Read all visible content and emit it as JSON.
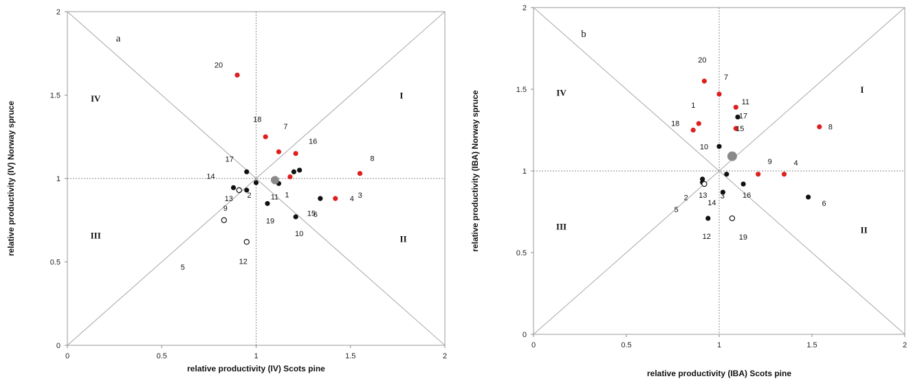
{
  "chart_data": [
    {
      "type": "scatter",
      "panel_label": "a",
      "xlabel": "relative productivity (IV) Scots pine",
      "ylabel": "relative productivity (IV) Norway spruce",
      "xlim": [
        0,
        2
      ],
      "ylim": [
        0,
        2
      ],
      "xticks": [
        "0",
        "0.5",
        "1",
        "1.5",
        "2"
      ],
      "yticks": [
        "0",
        "0.5",
        "1",
        "1.5",
        "2"
      ],
      "quadrants": {
        "I": "I",
        "II": "II",
        "III": "III",
        "IV": "IV"
      },
      "colors": {
        "red": "#dd1f1f",
        "black": "#111111",
        "open": "#ffffff",
        "mean": "#8a8a8a"
      },
      "mean_point": {
        "x": 1.1,
        "y": 0.99
      },
      "points": [
        {
          "label": "1",
          "x": 1.12,
          "y": 0.97,
          "style": "black"
        },
        {
          "label": "2",
          "x": 1.0,
          "y": 0.975,
          "style": "black"
        },
        {
          "label": "3",
          "x": 1.23,
          "y": 1.05,
          "style": "black"
        },
        {
          "label": "4",
          "x": 1.42,
          "y": 0.88,
          "style": "red"
        },
        {
          "label": "5",
          "x": 0.83,
          "y": 0.75,
          "style": "open"
        },
        {
          "label": "6",
          "x": 1.34,
          "y": 0.88,
          "style": "black"
        },
        {
          "label": "7",
          "x": 1.12,
          "y": 1.16,
          "style": "red"
        },
        {
          "label": "8",
          "x": 1.55,
          "y": 1.03,
          "style": "red"
        },
        {
          "label": "9",
          "x": 0.95,
          "y": 0.93,
          "style": "black"
        },
        {
          "label": "10",
          "x": 1.21,
          "y": 0.77,
          "style": "black"
        },
        {
          "label": "11",
          "x": 1.2,
          "y": 1.04,
          "style": "black"
        },
        {
          "label": "12",
          "x": 0.95,
          "y": 0.62,
          "style": "open"
        },
        {
          "label": "13",
          "x": 0.91,
          "y": 0.93,
          "style": "open"
        },
        {
          "label": "14",
          "x": 0.88,
          "y": 0.945,
          "style": "black"
        },
        {
          "label": "15",
          "x": 1.18,
          "y": 1.01,
          "style": "red"
        },
        {
          "label": "16",
          "x": 1.21,
          "y": 1.15,
          "style": "red"
        },
        {
          "label": "17",
          "x": 0.95,
          "y": 1.04,
          "style": "black"
        },
        {
          "label": "18",
          "x": 1.05,
          "y": 1.25,
          "style": "red"
        },
        {
          "label": "19",
          "x": 1.06,
          "y": 0.85,
          "style": "black"
        },
        {
          "label": "20",
          "x": 0.9,
          "y": 1.62,
          "style": "red"
        }
      ]
    },
    {
      "type": "scatter",
      "panel_label": "b",
      "xlabel": "relative productivity (IBA) Scots pine",
      "ylabel": "relative productivity (IBA) Norway spruce",
      "xlim": [
        0,
        2
      ],
      "ylim": [
        0,
        2
      ],
      "xticks": [
        "0",
        "0.5",
        "1",
        "1.5",
        "2"
      ],
      "yticks": [
        "0",
        "0.5",
        "1",
        "1.5",
        "2"
      ],
      "quadrants": {
        "I": "I",
        "II": "II",
        "III": "III",
        "IV": "IV"
      },
      "colors": {
        "red": "#dd1f1f",
        "black": "#111111",
        "open": "#ffffff",
        "mean": "#8a8a8a"
      },
      "mean_point": {
        "x": 1.07,
        "y": 1.09
      },
      "points": [
        {
          "label": "1",
          "x": 0.89,
          "y": 1.29,
          "style": "red"
        },
        {
          "label": "2",
          "x": 0.91,
          "y": 0.93,
          "style": "black"
        },
        {
          "label": "3",
          "x": 1.04,
          "y": 0.98,
          "style": "black"
        },
        {
          "label": "4",
          "x": 1.35,
          "y": 0.98,
          "style": "red"
        },
        {
          "label": "5",
          "x": 0.91,
          "y": 0.95,
          "style": "black"
        },
        {
          "label": "6",
          "x": 1.48,
          "y": 0.84,
          "style": "black"
        },
        {
          "label": "7",
          "x": 1.0,
          "y": 1.47,
          "style": "red"
        },
        {
          "label": "8",
          "x": 1.54,
          "y": 1.27,
          "style": "red"
        },
        {
          "label": "9",
          "x": 1.21,
          "y": 0.98,
          "style": "red"
        },
        {
          "label": "10",
          "x": 1.0,
          "y": 1.15,
          "style": "black"
        },
        {
          "label": "11",
          "x": 1.09,
          "y": 1.39,
          "style": "red"
        },
        {
          "label": "12",
          "x": 0.94,
          "y": 0.71,
          "style": "black"
        },
        {
          "label": "13",
          "x": 0.92,
          "y": 0.92,
          "style": "open"
        },
        {
          "label": "14",
          "x": 1.02,
          "y": 0.87,
          "style": "black"
        },
        {
          "label": "15",
          "x": 1.09,
          "y": 1.26,
          "style": "red"
        },
        {
          "label": "16",
          "x": 1.13,
          "y": 0.92,
          "style": "black"
        },
        {
          "label": "17",
          "x": 1.1,
          "y": 1.33,
          "style": "black"
        },
        {
          "label": "18",
          "x": 0.86,
          "y": 1.25,
          "style": "red"
        },
        {
          "label": "19",
          "x": 1.07,
          "y": 0.71,
          "style": "open"
        },
        {
          "label": "20",
          "x": 0.92,
          "y": 1.55,
          "style": "red"
        }
      ]
    }
  ]
}
